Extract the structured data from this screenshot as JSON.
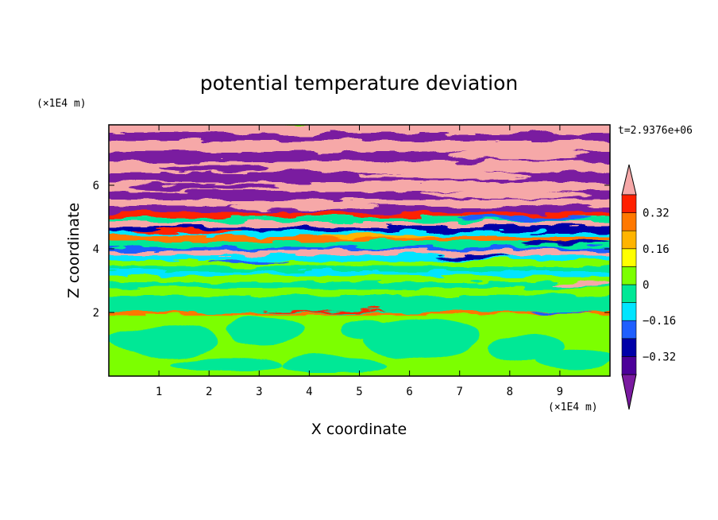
{
  "chart_data": {
    "type": "heatmap",
    "title": "potential temperature deviation",
    "xlabel": "X coordinate",
    "ylabel": "Z coordinate",
    "x_unit": "(×1E4 m)",
    "y_unit": "(×1E4 m)",
    "timestamp": "t=2.9376e+06",
    "xlim": [
      0,
      10
    ],
    "ylim": [
      0,
      7.9
    ],
    "x_ticks": [
      1,
      2,
      3,
      4,
      5,
      6,
      7,
      8,
      9
    ],
    "y_ticks": [
      2,
      4,
      6
    ],
    "colorbar": {
      "levels": [
        -0.4,
        -0.32,
        -0.24,
        -0.16,
        -0.08,
        0,
        0.08,
        0.16,
        0.24,
        0.32,
        0.4
      ],
      "colors": [
        "#4c0099",
        "#0000a8",
        "#1f5fff",
        "#00e5ff",
        "#00e896",
        "#7cff00",
        "#ffff00",
        "#ffb400",
        "#ff7800",
        "#ff2000"
      ],
      "under_color": "#7a1aa0",
      "over_color": "#f6a8a8",
      "tick_values": [
        "0.32",
        "0.16",
        "0",
        "−0.16",
        "−0.32"
      ]
    },
    "z_profile": [
      {
        "z_range": [
          0,
          1.9
        ],
        "dominant": "0 to 0.08 (light green) with -0.08 to 0 patches"
      },
      {
        "z_range": [
          1.9,
          3.0
        ],
        "dominant": "-0.08 to 0.08 (green) with thin warm streaks near z=2"
      },
      {
        "z_range": [
          3.0,
          4.3
        ],
        "dominant": "horizontal bands alternating -0.16 to 0.08"
      },
      {
        "z_range": [
          4.3,
          5.5
        ],
        "dominant": "mixed -0.4 to 0.4 turbulent layer"
      },
      {
        "z_range": [
          5.5,
          7.9
        ],
        "dominant": "alternating bands below -0.4 and above 0.4"
      }
    ]
  }
}
